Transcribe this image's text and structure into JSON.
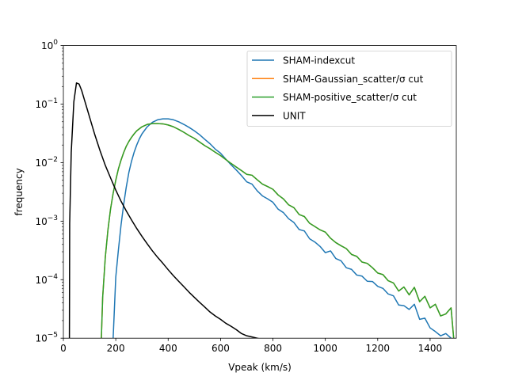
{
  "chart_data": {
    "type": "line",
    "xlabel": "Vpeak (km/s)",
    "ylabel": "frequency",
    "xlim": [
      0,
      1500
    ],
    "ylim": [
      1e-05,
      1
    ],
    "yscale": "log",
    "x_ticks": [
      "0",
      "200",
      "400",
      "600",
      "800",
      "1000",
      "1200",
      "1400"
    ],
    "y_ticks": [
      {
        "base": "10",
        "exp": "0"
      },
      {
        "base": "10",
        "exp": "−1"
      },
      {
        "base": "10",
        "exp": "−2"
      },
      {
        "base": "10",
        "exp": "−3"
      },
      {
        "base": "10",
        "exp": "−4"
      },
      {
        "base": "10",
        "exp": "−5"
      }
    ],
    "grid": false,
    "legend_position": "upper right",
    "series": [
      {
        "name": "SHAM-indexcut",
        "color": "#1f77b4",
        "x": [
          190,
          200,
          210,
          220,
          230,
          240,
          250,
          260,
          270,
          280,
          290,
          300,
          320,
          340,
          360,
          380,
          400,
          420,
          440,
          460,
          480,
          500,
          520,
          540,
          560,
          580,
          600,
          620,
          640,
          660,
          680,
          700,
          720,
          740,
          760,
          780,
          800,
          820,
          840,
          860,
          880,
          900,
          920,
          940,
          960,
          980,
          1000,
          1020,
          1040,
          1060,
          1080,
          1100,
          1120,
          1140,
          1160,
          1180,
          1200,
          1220,
          1240,
          1260,
          1280,
          1300,
          1320,
          1340,
          1360,
          1380,
          1400,
          1420,
          1440,
          1460,
          1480
        ],
        "y": [
          1e-05,
          0.00011,
          0.00032,
          0.00085,
          0.0019,
          0.0038,
          0.0068,
          0.0105,
          0.015,
          0.02,
          0.0255,
          0.031,
          0.041,
          0.049,
          0.054,
          0.056,
          0.056,
          0.054,
          0.05,
          0.045,
          0.04,
          0.035,
          0.03,
          0.025,
          0.021,
          0.017,
          0.0145,
          0.0115,
          0.0092,
          0.0075,
          0.006,
          0.0047,
          0.0043,
          0.0033,
          0.0027,
          0.0024,
          0.0021,
          0.0016,
          0.0014,
          0.0011,
          0.00095,
          0.00072,
          0.00068,
          0.0005,
          0.00044,
          0.00037,
          0.00029,
          0.00031,
          0.00023,
          0.00021,
          0.00016,
          0.00015,
          0.00012,
          0.000115,
          9.4e-05,
          9.3e-05,
          7.7e-05,
          7.1e-05,
          5.7e-05,
          5.3e-05,
          3.7e-05,
          3.6e-05,
          3.1e-05,
          3.8e-05,
          2.1e-05,
          2.2e-05,
          1.5e-05,
          1.3e-05,
          1.1e-05,
          1.2e-05,
          1e-05
        ]
      },
      {
        "name": "SHAM-Gaussian_scatter/σ cut",
        "color": "#ff7f0e",
        "x": [
          145,
          150,
          160,
          170,
          180,
          190,
          200,
          210,
          220,
          230,
          240,
          250,
          260,
          270,
          280,
          300,
          320,
          340,
          360,
          380,
          400,
          420,
          440,
          460,
          480,
          500,
          520,
          540,
          560,
          580,
          600,
          620,
          640,
          660,
          680,
          700,
          720,
          740,
          760,
          780,
          800,
          820,
          840,
          860,
          880,
          900,
          920,
          940,
          960,
          980,
          1000,
          1020,
          1040,
          1060,
          1080,
          1100,
          1120,
          1140,
          1160,
          1180,
          1200,
          1220,
          1240,
          1260,
          1280,
          1300,
          1320,
          1340,
          1360,
          1380,
          1400,
          1420,
          1440,
          1460,
          1480,
          1490
        ],
        "y": [
          1e-05,
          5e-05,
          0.00024,
          0.0007,
          0.0016,
          0.003,
          0.005,
          0.0078,
          0.011,
          0.0148,
          0.019,
          0.023,
          0.027,
          0.031,
          0.035,
          0.041,
          0.045,
          0.0465,
          0.0465,
          0.046,
          0.044,
          0.041,
          0.037,
          0.033,
          0.029,
          0.026,
          0.0225,
          0.0195,
          0.0173,
          0.015,
          0.0132,
          0.0113,
          0.0097,
          0.0084,
          0.0073,
          0.0063,
          0.0061,
          0.0051,
          0.0043,
          0.0039,
          0.0035,
          0.0028,
          0.0024,
          0.0019,
          0.0017,
          0.0013,
          0.0012,
          0.00092,
          0.00081,
          0.00071,
          0.00065,
          0.00051,
          0.00043,
          0.00038,
          0.00034,
          0.00027,
          0.00025,
          0.0002,
          0.00019,
          0.00016,
          0.00013,
          0.000122,
          9.6e-05,
          8.8e-05,
          6.4e-05,
          7.5e-05,
          5.5e-05,
          7.4e-05,
          4.2e-05,
          5.2e-05,
          3.3e-05,
          3.8e-05,
          2.4e-05,
          2.6e-05,
          3.3e-05,
          1e-05
        ]
      },
      {
        "name": "SHAM-positive_scatter/σ cut",
        "color": "#2ca02c",
        "x": [
          145,
          150,
          160,
          170,
          180,
          190,
          200,
          210,
          220,
          230,
          240,
          250,
          260,
          270,
          280,
          300,
          320,
          340,
          360,
          380,
          400,
          420,
          440,
          460,
          480,
          500,
          520,
          540,
          560,
          580,
          600,
          620,
          640,
          660,
          680,
          700,
          720,
          740,
          760,
          780,
          800,
          820,
          840,
          860,
          880,
          900,
          920,
          940,
          960,
          980,
          1000,
          1020,
          1040,
          1060,
          1080,
          1100,
          1120,
          1140,
          1160,
          1180,
          1200,
          1220,
          1240,
          1260,
          1280,
          1300,
          1320,
          1340,
          1360,
          1380,
          1400,
          1420,
          1440,
          1460,
          1480,
          1490
        ],
        "y": [
          1e-05,
          5e-05,
          0.00024,
          0.0007,
          0.0016,
          0.003,
          0.005,
          0.0078,
          0.011,
          0.0148,
          0.019,
          0.023,
          0.027,
          0.031,
          0.035,
          0.041,
          0.045,
          0.0465,
          0.0465,
          0.046,
          0.044,
          0.041,
          0.037,
          0.033,
          0.029,
          0.026,
          0.0225,
          0.0195,
          0.0173,
          0.015,
          0.0132,
          0.0113,
          0.0097,
          0.0084,
          0.0073,
          0.0063,
          0.0061,
          0.0051,
          0.0043,
          0.0039,
          0.0035,
          0.0028,
          0.0024,
          0.0019,
          0.0017,
          0.0013,
          0.0012,
          0.00092,
          0.00081,
          0.00071,
          0.00065,
          0.00051,
          0.00043,
          0.00038,
          0.00034,
          0.00027,
          0.00025,
          0.0002,
          0.00019,
          0.00016,
          0.00013,
          0.000122,
          9.6e-05,
          8.8e-05,
          6.4e-05,
          7.5e-05,
          5.5e-05,
          7.4e-05,
          4.2e-05,
          5.2e-05,
          3.3e-05,
          3.8e-05,
          2.4e-05,
          2.6e-05,
          3.3e-05,
          1e-05
        ]
      },
      {
        "name": "UNIT",
        "color": "#000000",
        "x": [
          23,
          24,
          30,
          40,
          50,
          60,
          70,
          80,
          90,
          100,
          120,
          140,
          160,
          180,
          200,
          220,
          240,
          260,
          280,
          300,
          320,
          340,
          360,
          380,
          400,
          420,
          440,
          460,
          480,
          500,
          520,
          540,
          560,
          580,
          600,
          620,
          640,
          660,
          680,
          700,
          720,
          740,
          760,
          780,
          800,
          810
        ],
        "y": [
          1e-05,
          0.0009,
          0.015,
          0.11,
          0.23,
          0.22,
          0.17,
          0.12,
          0.085,
          0.06,
          0.03,
          0.016,
          0.009,
          0.0055,
          0.0034,
          0.0022,
          0.0015,
          0.00105,
          0.00075,
          0.00055,
          0.00041,
          0.00031,
          0.00024,
          0.00019,
          0.000148,
          0.000117,
          9.4e-05,
          7.6e-05,
          6.1e-05,
          5e-05,
          4.1e-05,
          3.4e-05,
          2.8e-05,
          2.4e-05,
          2.1e-05,
          1.8e-05,
          1.6e-05,
          1.4e-05,
          1.2e-05,
          1.1e-05,
          1.05e-05,
          1e-05,
          9.5e-06,
          8.8e-06,
          8.2e-06,
          7.8e-06
        ]
      }
    ]
  }
}
